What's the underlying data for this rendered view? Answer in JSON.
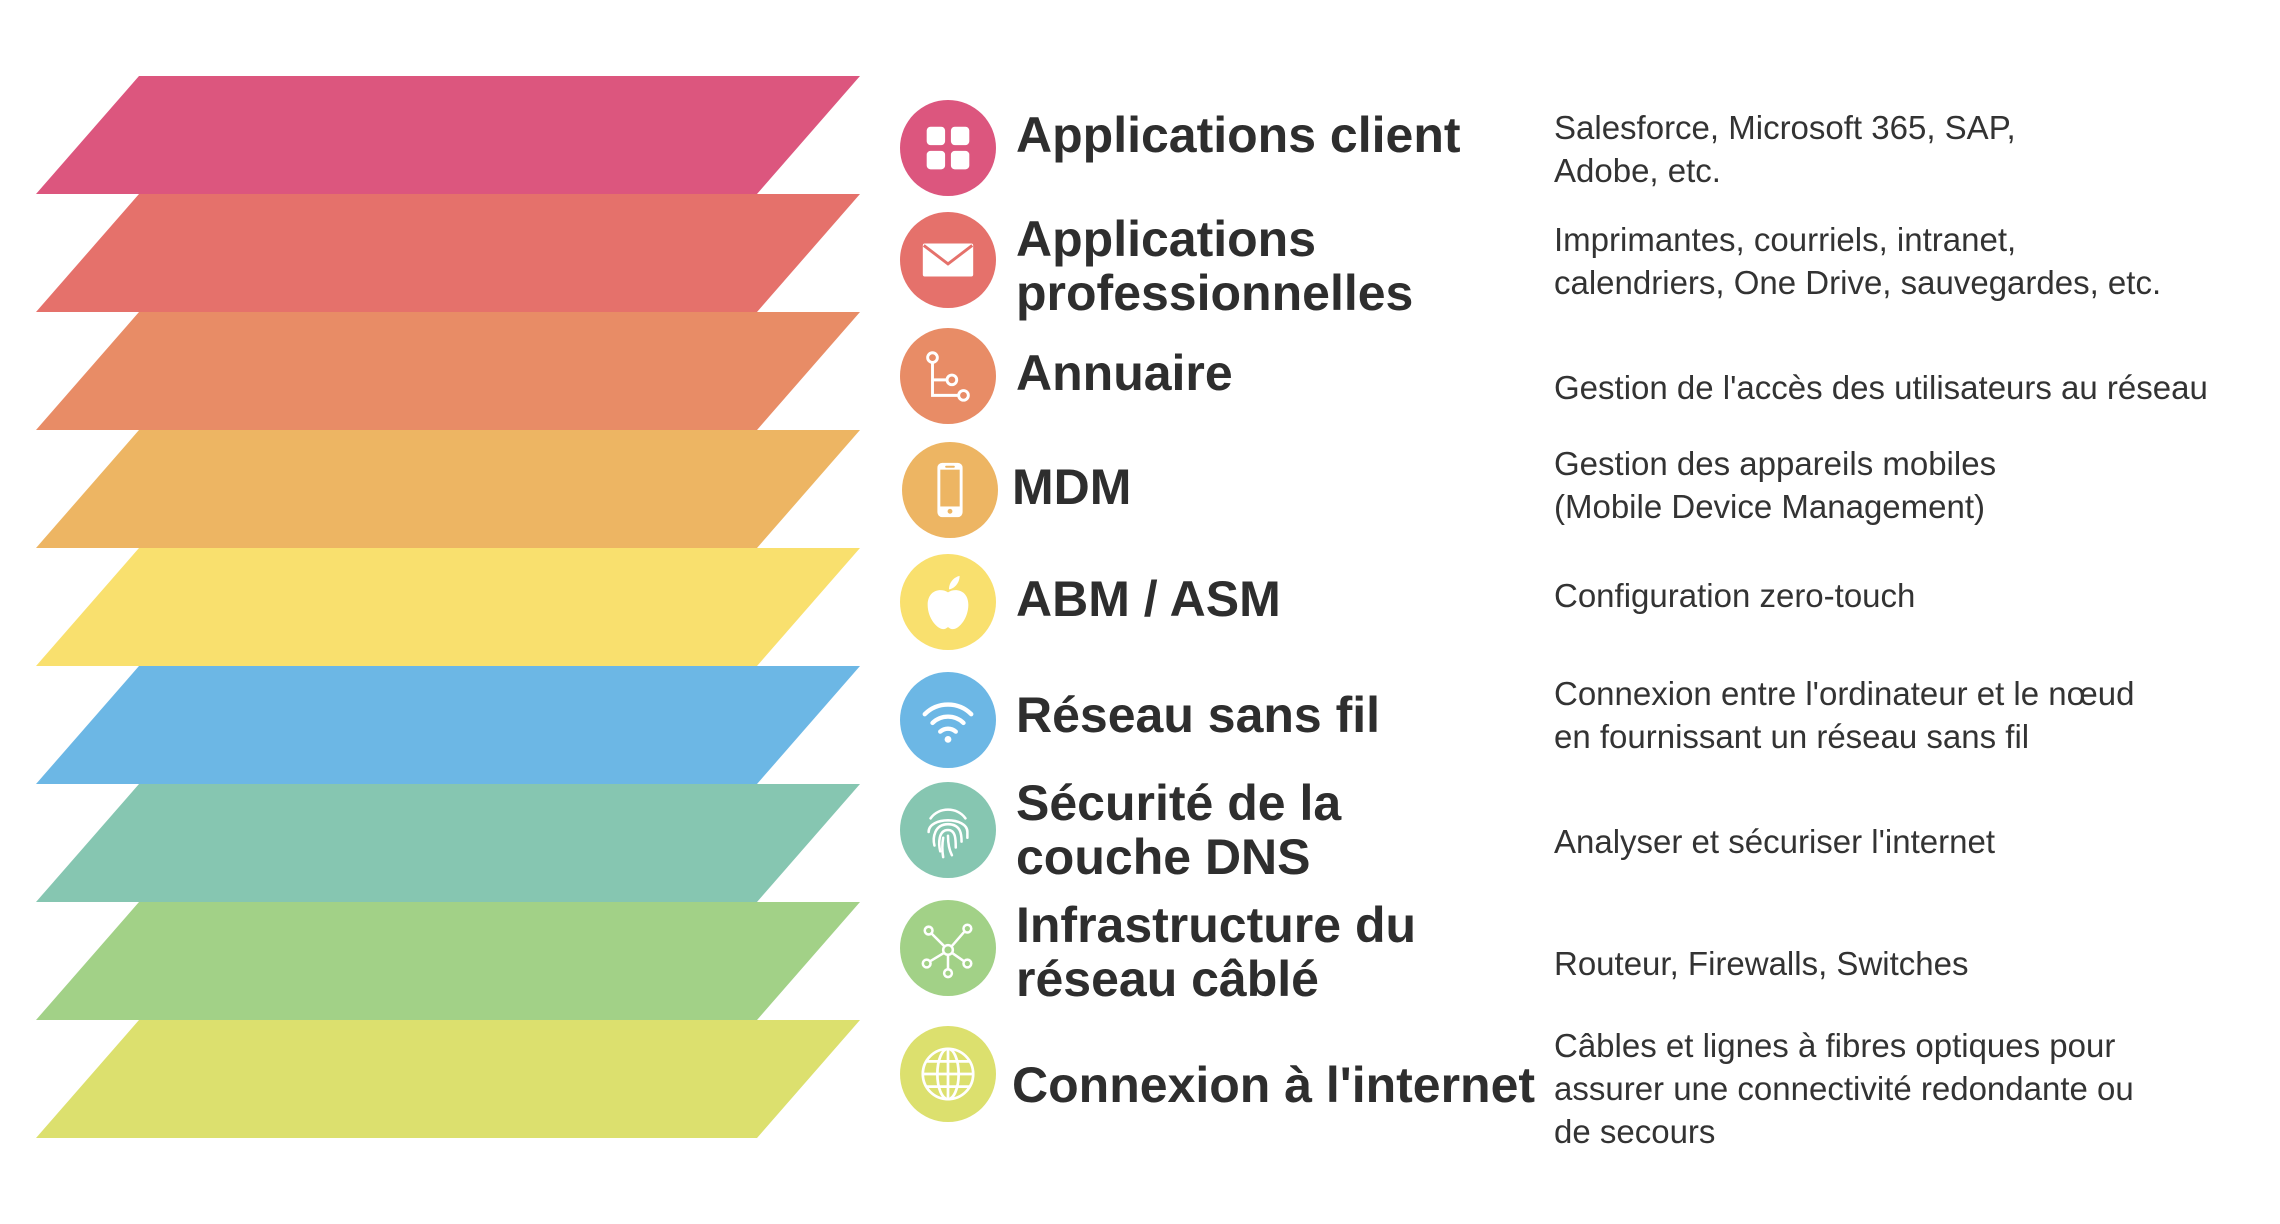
{
  "layers": [
    {
      "title_lines": [
        "Applications client"
      ],
      "desc_lines": [
        "Salesforce, Microsoft 365, SAP,",
        "Adobe, etc."
      ],
      "icon": "grid-icon",
      "color": "#DC567E"
    },
    {
      "title_lines": [
        "Applications",
        "professionnelles"
      ],
      "desc_lines": [
        "Imprimantes, courriels, intranet,",
        "calendriers, One Drive, sauvegardes, etc."
      ],
      "icon": "envelope-icon",
      "color": "#E5716B"
    },
    {
      "title_lines": [
        "Annuaire"
      ],
      "desc_lines": [
        "Gestion de l'accès des utilisateurs au réseau"
      ],
      "icon": "directory-tree-icon",
      "color": "#E88C66"
    },
    {
      "title_lines": [
        "MDM"
      ],
      "desc_lines": [
        "Gestion des appareils mobiles",
        "(Mobile Device Management)"
      ],
      "icon": "smartphone-icon",
      "color": "#EDB563"
    },
    {
      "title_lines": [
        "ABM / ASM"
      ],
      "desc_lines": [
        "Configuration zero-touch"
      ],
      "icon": "apple-icon",
      "color": "#F9E06E"
    },
    {
      "title_lines": [
        "Réseau sans fil"
      ],
      "desc_lines": [
        "Connexion entre l'ordinateur et le nœud",
        "en fournissant un réseau sans fil"
      ],
      "icon": "wifi-icon",
      "color": "#6CB7E5"
    },
    {
      "title_lines": [
        "Sécurité de la",
        "couche DNS"
      ],
      "desc_lines": [
        "Analyser et sécuriser l'internet"
      ],
      "icon": "fingerprint-icon",
      "color": "#86C6B1"
    },
    {
      "title_lines": [
        "Infrastructure du",
        "réseau câblé"
      ],
      "desc_lines": [
        "Routeur, Firewalls, Switches"
      ],
      "icon": "network-nodes-icon",
      "color": "#A2D187"
    },
    {
      "title_lines": [
        "Connexion à l'internet"
      ],
      "desc_lines": [
        "Câbles et lignes à fibres optiques pour",
        "assurer une connectivité redondante ou",
        "de secours"
      ],
      "icon": "globe-icon",
      "color": "#DCE06E"
    }
  ]
}
